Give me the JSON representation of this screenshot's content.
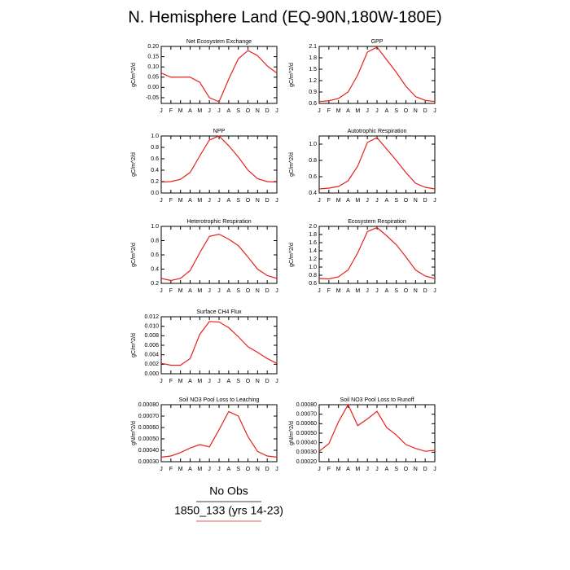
{
  "title": "N. Hemisphere Land (EQ-90N,180W-180E)",
  "legend": [
    {
      "name": "No Obs",
      "color": "#000000"
    },
    {
      "name": "1850_133 (yrs 14-23)",
      "color": "#e8201c"
    }
  ],
  "chart_data": [
    {
      "type": "line",
      "title": "Net Ecosystem Exchange",
      "ylabel": "gC/m^2/d",
      "color": "#e8201c",
      "categories": [
        "J",
        "F",
        "M",
        "A",
        "M",
        "J",
        "J",
        "A",
        "S",
        "O",
        "N",
        "D",
        "J"
      ],
      "values": [
        0.07,
        0.05,
        0.05,
        0.05,
        0.025,
        -0.05,
        -0.07,
        0.04,
        0.14,
        0.18,
        0.155,
        0.105,
        0.07
      ],
      "ylim": [
        -0.078,
        0.2
      ],
      "yticks": [
        -0.05,
        {
          "value": 0,
          "label": "0.00"
        },
        0.05,
        {
          "value": 0.1,
          "label": "0.10"
        },
        0.15,
        {
          "value": 0.2,
          "label": "0.20"
        }
      ]
    },
    {
      "type": "line",
      "title": "GPP",
      "ylabel": "gC/m^2/d",
      "color": "#e8201c",
      "categories": [
        "J",
        "F",
        "M",
        "A",
        "M",
        "J",
        "J",
        "A",
        "S",
        "O",
        "N",
        "D",
        "J"
      ],
      "values": [
        0.65,
        0.67,
        0.73,
        0.9,
        1.35,
        1.95,
        2.08,
        1.75,
        1.42,
        1.05,
        0.78,
        0.68,
        0.65
      ],
      "ylim": [
        0.6,
        2.1
      ],
      "yticks": [
        0.6,
        0.9,
        1.2,
        1.5,
        1.8,
        2.1
      ]
    },
    {
      "type": "line",
      "title": "NPP",
      "ylabel": "gC/m^2/d",
      "color": "#e8201c",
      "categories": [
        "J",
        "F",
        "M",
        "A",
        "M",
        "J",
        "J",
        "A",
        "S",
        "O",
        "N",
        "D",
        "J"
      ],
      "values": [
        0.19,
        0.2,
        0.24,
        0.36,
        0.65,
        0.93,
        1.0,
        0.83,
        0.63,
        0.4,
        0.25,
        0.2,
        0.19
      ],
      "ylim": [
        0,
        1
      ],
      "yticks": [
        {
          "value": 0,
          "label": "0.0"
        },
        0.2,
        0.4,
        0.6,
        0.8,
        {
          "value": 1,
          "label": "1.0"
        }
      ]
    },
    {
      "type": "line",
      "title": "Autotrophic Respiration",
      "ylabel": "gC/m^2/d",
      "color": "#e8201c",
      "categories": [
        "J",
        "F",
        "M",
        "A",
        "M",
        "J",
        "J",
        "A",
        "S",
        "O",
        "N",
        "D",
        "J"
      ],
      "values": [
        0.45,
        0.46,
        0.48,
        0.55,
        0.73,
        1.02,
        1.08,
        0.94,
        0.8,
        0.65,
        0.52,
        0.47,
        0.45
      ],
      "ylim": [
        0.4,
        1.1
      ],
      "yticks": [
        0.4,
        0.6,
        0.8,
        {
          "value": 1,
          "label": "1.0"
        }
      ]
    },
    {
      "type": "line",
      "title": "Heterotrophic Respiration",
      "ylabel": "gC/m^2/d",
      "color": "#e8201c",
      "categories": [
        "J",
        "F",
        "M",
        "A",
        "M",
        "J",
        "J",
        "A",
        "S",
        "O",
        "N",
        "D",
        "J"
      ],
      "values": [
        0.27,
        0.24,
        0.27,
        0.38,
        0.63,
        0.86,
        0.89,
        0.82,
        0.73,
        0.57,
        0.4,
        0.31,
        0.27
      ],
      "ylim": [
        0.2,
        1
      ],
      "yticks": [
        0.2,
        0.4,
        0.6,
        0.8,
        {
          "value": 1,
          "label": "1.0"
        }
      ]
    },
    {
      "type": "line",
      "title": "Ecosystem Respiration",
      "ylabel": "gC/m^2/d",
      "color": "#e8201c",
      "categories": [
        "J",
        "F",
        "M",
        "A",
        "M",
        "J",
        "J",
        "A",
        "S",
        "O",
        "N",
        "D",
        "J"
      ],
      "values": [
        0.72,
        0.71,
        0.76,
        0.93,
        1.35,
        1.87,
        1.97,
        1.77,
        1.55,
        1.25,
        0.93,
        0.78,
        0.72
      ],
      "ylim": [
        0.6,
        2
      ],
      "yticks": [
        0.6,
        0.8,
        {
          "value": 1,
          "label": "1.0"
        },
        1.2,
        1.4,
        1.6,
        1.8,
        {
          "value": 2,
          "label": "2.0"
        }
      ]
    },
    {
      "type": "line",
      "title": "Surface CH4 Flux",
      "ylabel": "gC/m^2/d",
      "color": "#e8201c",
      "categories": [
        "J",
        "F",
        "M",
        "A",
        "M",
        "J",
        "J",
        "A",
        "S",
        "O",
        "N",
        "D",
        "J"
      ],
      "values": [
        0.0022,
        0.0018,
        0.0018,
        0.0032,
        0.0083,
        0.011,
        0.0109,
        0.0097,
        0.0078,
        0.0057,
        0.0045,
        0.0032,
        0.0022
      ],
      "ylim": [
        0,
        0.012
      ],
      "yticks": [
        {
          "value": 0,
          "label": "0.000"
        },
        0.002,
        0.004,
        0.006,
        0.008,
        {
          "value": 0.01,
          "label": "0.010"
        },
        0.012
      ]
    },
    {
      "type": "line",
      "title": "Soil NO3 Pool Loss to Leaching",
      "ylabel": "gN/m^2/d",
      "color": "#e8201c",
      "categories": [
        "J",
        "F",
        "M",
        "A",
        "M",
        "J",
        "J",
        "A",
        "S",
        "O",
        "N",
        "D",
        "J"
      ],
      "values": [
        0.00034,
        0.00035,
        0.00038,
        0.00042,
        0.00045,
        0.00043,
        0.00058,
        0.00074,
        0.0007,
        0.00052,
        0.00039,
        0.00035,
        0.00034
      ],
      "ylim": [
        0.0003,
        0.0008
      ],
      "yticks": [
        {
          "value": 0.0003,
          "label": "0.00030"
        },
        {
          "value": 0.0004,
          "label": "0.00040"
        },
        {
          "value": 0.0005,
          "label": "0.00050"
        },
        {
          "value": 0.0006,
          "label": "0.00060"
        },
        {
          "value": 0.0007,
          "label": "0.00070"
        },
        {
          "value": 0.0008,
          "label": "0.00080"
        }
      ]
    },
    {
      "type": "line",
      "title": "Soil NO3 Pool Loss to Runoff",
      "ylabel": "gN/m^2/d",
      "color": "#e8201c",
      "categories": [
        "J",
        "F",
        "M",
        "A",
        "M",
        "J",
        "J",
        "A",
        "S",
        "O",
        "N",
        "D",
        "J"
      ],
      "values": [
        0.00031,
        0.00039,
        0.00062,
        0.0008,
        0.00058,
        0.00065,
        0.00073,
        0.00056,
        0.00048,
        0.00038,
        0.00034,
        0.00031,
        0.00032
      ],
      "ylim": [
        0.0002,
        0.0008
      ],
      "yticks": [
        {
          "value": 0.0002,
          "label": "0.00020"
        },
        {
          "value": 0.0003,
          "label": "0.00030"
        },
        {
          "value": 0.0004,
          "label": "0.00040"
        },
        {
          "value": 0.0005,
          "label": "0.00050"
        },
        {
          "value": 0.0006,
          "label": "0.00060"
        },
        {
          "value": 0.0007,
          "label": "0.00070"
        },
        {
          "value": 0.0008,
          "label": "0.00080"
        }
      ]
    }
  ]
}
